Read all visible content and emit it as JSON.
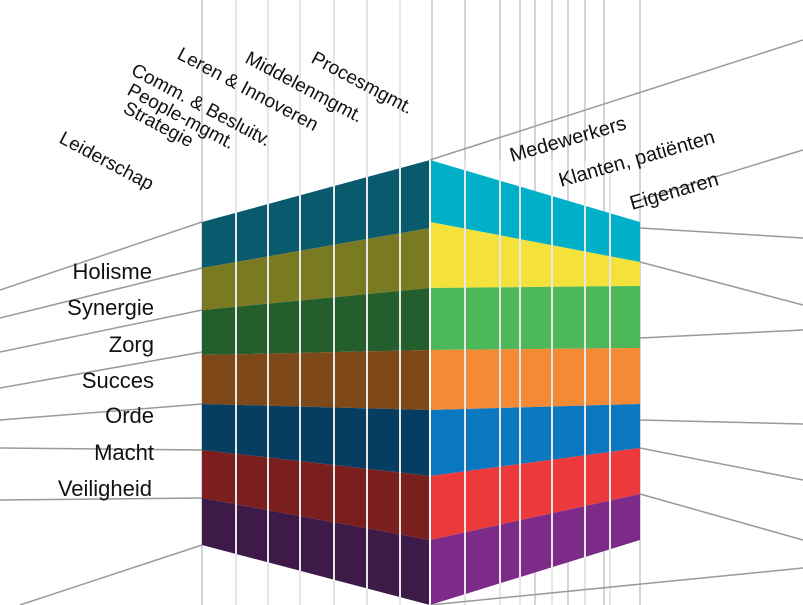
{
  "left_labels": [
    "Holisme",
    "Synergie",
    "Zorg",
    "Succes",
    "Orde",
    "Macht",
    "Veiligheid"
  ],
  "top_labels": [
    "Leiderschap",
    "Strategie",
    "People-mgmt.",
    "Comm. & Besluitv.",
    "Leren & Innoveren",
    "Middelenmgmt.",
    "Procesmgmt."
  ],
  "right_labels": [
    "Medewerkers",
    "Klanten, patiënten",
    "Eigenaren"
  ],
  "colors": {
    "left_face": [
      "#0a5a6e",
      "#7a7a22",
      "#245e2c",
      "#7e4818",
      "#063e62",
      "#7a1e1e",
      "#3e1a48"
    ],
    "right_face": [
      "#00b0c8",
      "#f4e13c",
      "#4cb85a",
      "#f48a34",
      "#0a78c0",
      "#ec3a3c",
      "#7c2c88"
    ],
    "grid_lines": "#d4d4d4"
  }
}
